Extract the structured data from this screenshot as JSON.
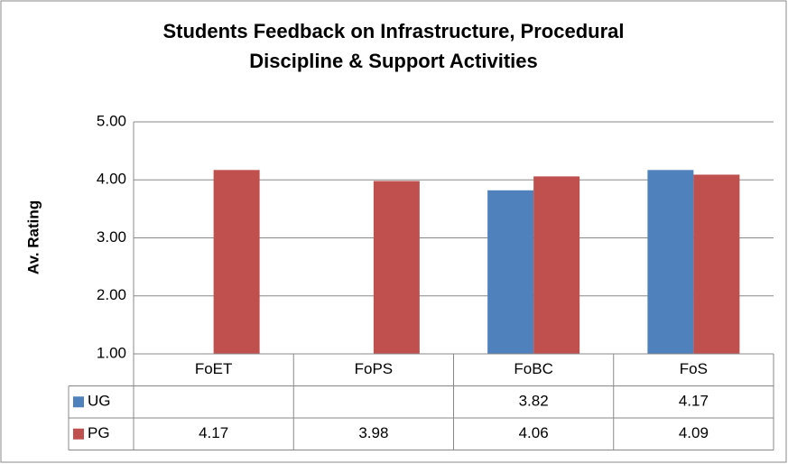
{
  "chart_data": {
    "type": "bar",
    "title": "Students Feedback on Infrastructure, Procedural Discipline & Support Activities",
    "ylabel": "Av. Rating",
    "categories": [
      "FoET",
      "FoPS",
      "FoBC",
      "FoS"
    ],
    "series": [
      {
        "name": "UG",
        "color": "#4f81bd",
        "values": [
          null,
          null,
          3.82,
          4.17
        ]
      },
      {
        "name": "PG",
        "color": "#c0504d",
        "values": [
          4.17,
          3.98,
          4.06,
          4.09
        ]
      }
    ],
    "ylim": [
      1,
      5
    ],
    "yticks": [
      {
        "value": 1,
        "label": "1.00"
      },
      {
        "value": 2,
        "label": "2.00"
      },
      {
        "value": 3,
        "label": "3.00"
      },
      {
        "value": 4,
        "label": "4.00"
      },
      {
        "value": 5,
        "label": "5.00"
      }
    ],
    "grid": true,
    "data_table": true
  }
}
